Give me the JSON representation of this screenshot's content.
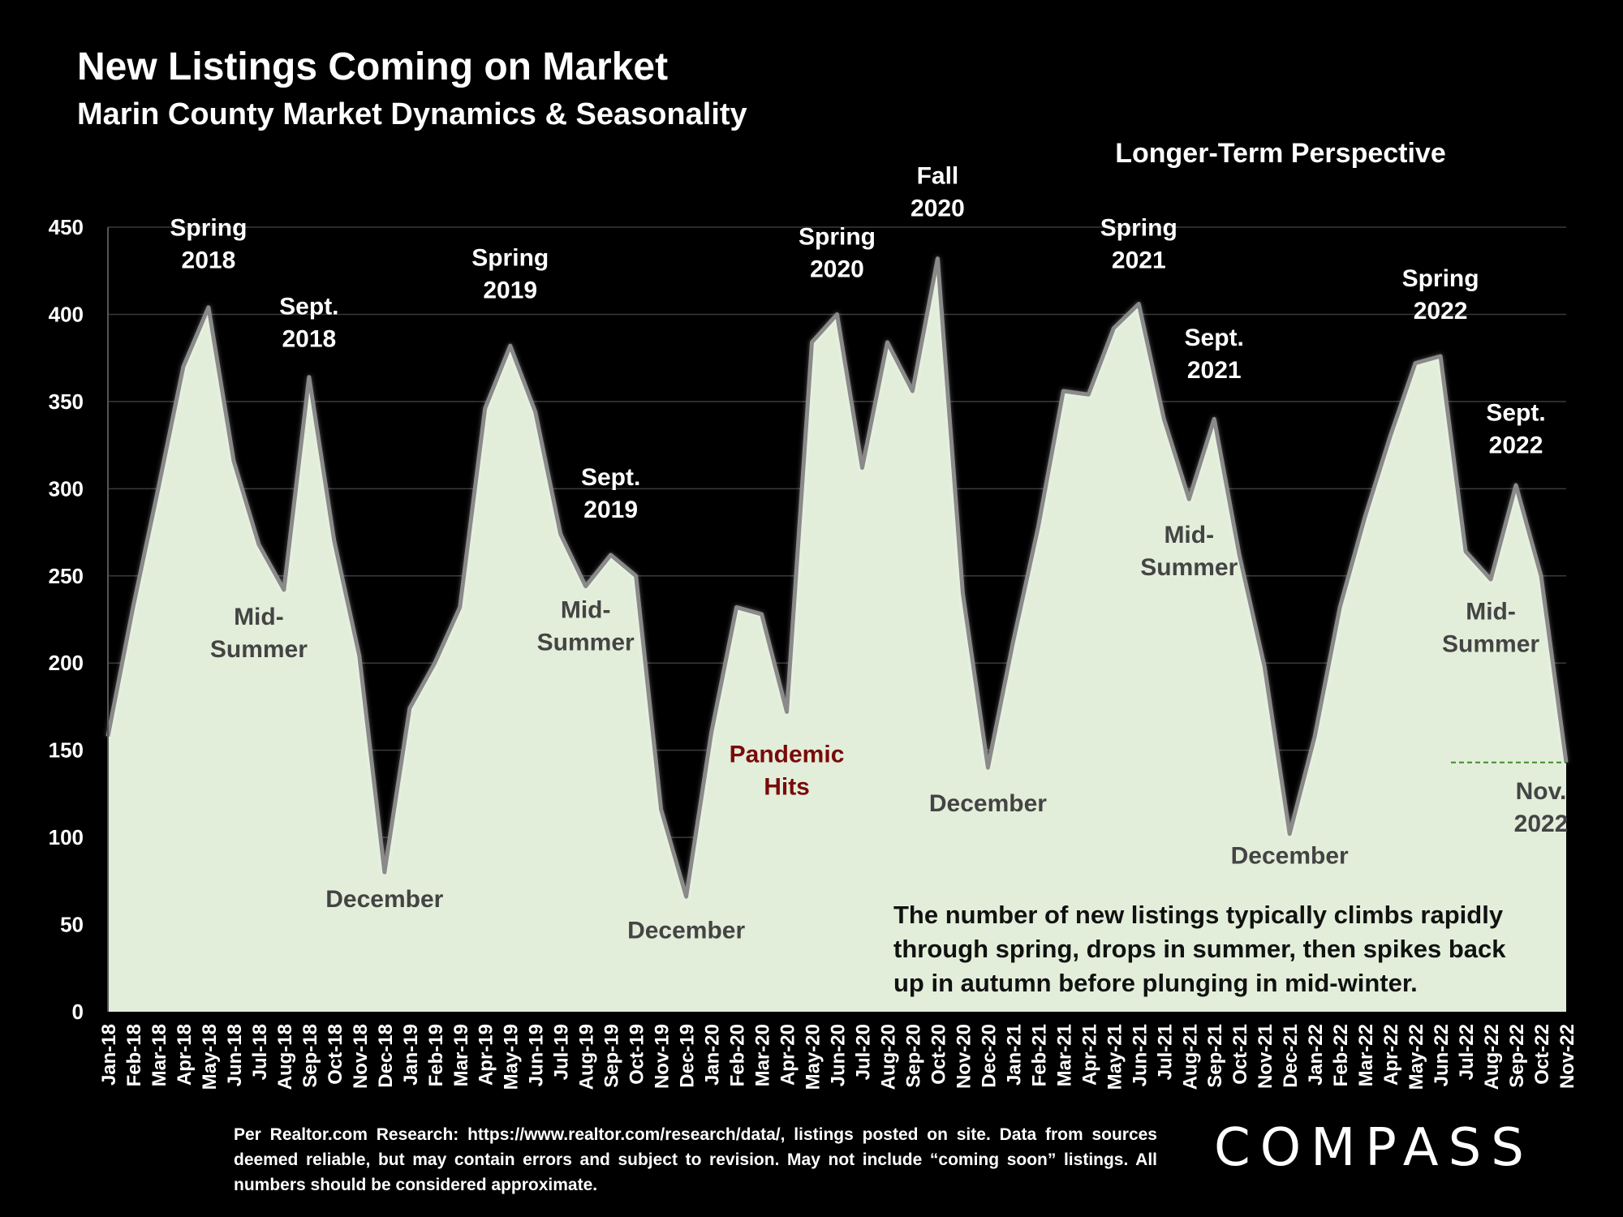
{
  "title": "New Listings Coming on Market",
  "subtitle": "Marin County Market Dynamics & Seasonality",
  "perspective": "Longer-Term Perspective",
  "note_lines": [
    "The number of new listings typically climbs rapidly",
    "through spring, drops in summer, then spikes back",
    "up in autumn before plunging in mid-winter."
  ],
  "footer": "Per Realtor.com Research:  https://www.realtor.com/research/data/, listings posted on site. Data from sources deemed reliable, but may contain errors and subject to revision. May not include “coming soon” listings. All numbers should be considered approximate.",
  "logo": "COMPASS",
  "colors": {
    "fill": "#e2eeda",
    "line": "#8a8a8a",
    "pandemic": "#7a0a0a",
    "dashed": "#3f8a2a",
    "background": "#000000"
  },
  "chart_data": {
    "type": "area",
    "ylim": [
      0,
      450
    ],
    "yticks": [
      "0",
      "50",
      "100",
      "150",
      "200",
      "250",
      "300",
      "350",
      "400",
      "450"
    ],
    "x": [
      "Jan-18",
      "Feb-18",
      "Mar-18",
      "Apr-18",
      "May-18",
      "Jun-18",
      "Jul-18",
      "Aug-18",
      "Sep-18",
      "Oct-18",
      "Nov-18",
      "Dec-18",
      "Jan-19",
      "Feb-19",
      "Mar-19",
      "Apr-19",
      "May-19",
      "Jun-19",
      "Jul-19",
      "Aug-19",
      "Sep-19",
      "Oct-19",
      "Nov-19",
      "Dec-19",
      "Jan-20",
      "Feb-20",
      "Mar-20",
      "Apr-20",
      "May-20",
      "Jun-20",
      "Jul-20",
      "Aug-20",
      "Sep-20",
      "Oct-20",
      "Nov-20",
      "Dec-20",
      "Jan-21",
      "Feb-21",
      "Mar-21",
      "Apr-21",
      "May-21",
      "Jun-21",
      "Jul-21",
      "Aug-21",
      "Sep-21",
      "Oct-21",
      "Nov-21",
      "Dec-21",
      "Jan-22",
      "Feb-22",
      "Mar-22",
      "Apr-22",
      "May-22",
      "Jun-22",
      "Jul-22",
      "Aug-22",
      "Sep-22",
      "Oct-22",
      "Nov-22"
    ],
    "values": [
      158,
      232,
      300,
      370,
      404,
      316,
      268,
      242,
      364,
      270,
      204,
      80,
      174,
      200,
      232,
      346,
      382,
      344,
      274,
      244,
      262,
      250,
      116,
      66,
      160,
      232,
      228,
      172,
      384,
      400,
      312,
      384,
      356,
      432,
      240,
      140,
      212,
      278,
      356,
      354,
      392,
      406,
      340,
      294,
      340,
      262,
      198,
      102,
      158,
      232,
      284,
      330,
      372,
      376,
      264,
      248,
      302,
      250,
      143
    ],
    "reference_line": {
      "value": 143,
      "style": "dashed"
    },
    "annotations": [
      {
        "lines": [
          "Spring",
          "2018"
        ],
        "x": "May-18",
        "y": 445,
        "color": "#ffffff"
      },
      {
        "lines": [
          "Sept.",
          "2018"
        ],
        "x": "Sep-18",
        "y": 400,
        "color": "#ffffff"
      },
      {
        "lines": [
          "Mid-",
          "Summer"
        ],
        "x": "Jul-18",
        "y": 222,
        "color": "#444444"
      },
      {
        "lines": [
          "December"
        ],
        "x": "Dec-18",
        "y": 60,
        "color": "#444444"
      },
      {
        "lines": [
          "Spring",
          "2019"
        ],
        "x": "May-19",
        "y": 428,
        "color": "#ffffff"
      },
      {
        "lines": [
          "Sept.",
          "2019"
        ],
        "x": "Sep-19",
        "y": 302,
        "color": "#ffffff"
      },
      {
        "lines": [
          "Mid-",
          "Summer"
        ],
        "x": "Aug-19",
        "y": 226,
        "color": "#444444"
      },
      {
        "lines": [
          "December"
        ],
        "x": "Dec-19",
        "y": 42,
        "color": "#444444"
      },
      {
        "lines": [
          "Pandemic",
          "Hits"
        ],
        "x": "Apr-20",
        "y": 143,
        "color": "#7a0a0a"
      },
      {
        "lines": [
          "Spring",
          "2020"
        ],
        "x": "Jun-20",
        "y": 440,
        "color": "#ffffff"
      },
      {
        "lines": [
          "Fall",
          "2020"
        ],
        "x": "Oct-20",
        "y": 475,
        "color": "#ffffff"
      },
      {
        "lines": [
          "December"
        ],
        "x": "Dec-20",
        "y": 115,
        "color": "#444444"
      },
      {
        "lines": [
          "Spring",
          "2021"
        ],
        "x": "Jun-21",
        "y": 445,
        "color": "#ffffff"
      },
      {
        "lines": [
          "Sept.",
          "2021"
        ],
        "x": "Sep-21",
        "y": 382,
        "color": "#ffffff"
      },
      {
        "lines": [
          "Mid-",
          "Summer"
        ],
        "x": "Aug-21",
        "y": 269,
        "color": "#444444"
      },
      {
        "lines": [
          "December"
        ],
        "x": "Dec-21",
        "y": 85,
        "color": "#444444"
      },
      {
        "lines": [
          "Spring",
          "2022"
        ],
        "x": "Jun-22",
        "y": 416,
        "color": "#ffffff"
      },
      {
        "lines": [
          "Sept.",
          "2022"
        ],
        "x": "Sep-22",
        "y": 339,
        "color": "#ffffff"
      },
      {
        "lines": [
          "Mid-",
          "Summer"
        ],
        "x": "Aug-22",
        "y": 225,
        "color": "#444444"
      },
      {
        "lines": [
          "Nov.",
          "2022"
        ],
        "x": "Oct-22",
        "y": 122,
        "color": "#444444"
      }
    ]
  }
}
